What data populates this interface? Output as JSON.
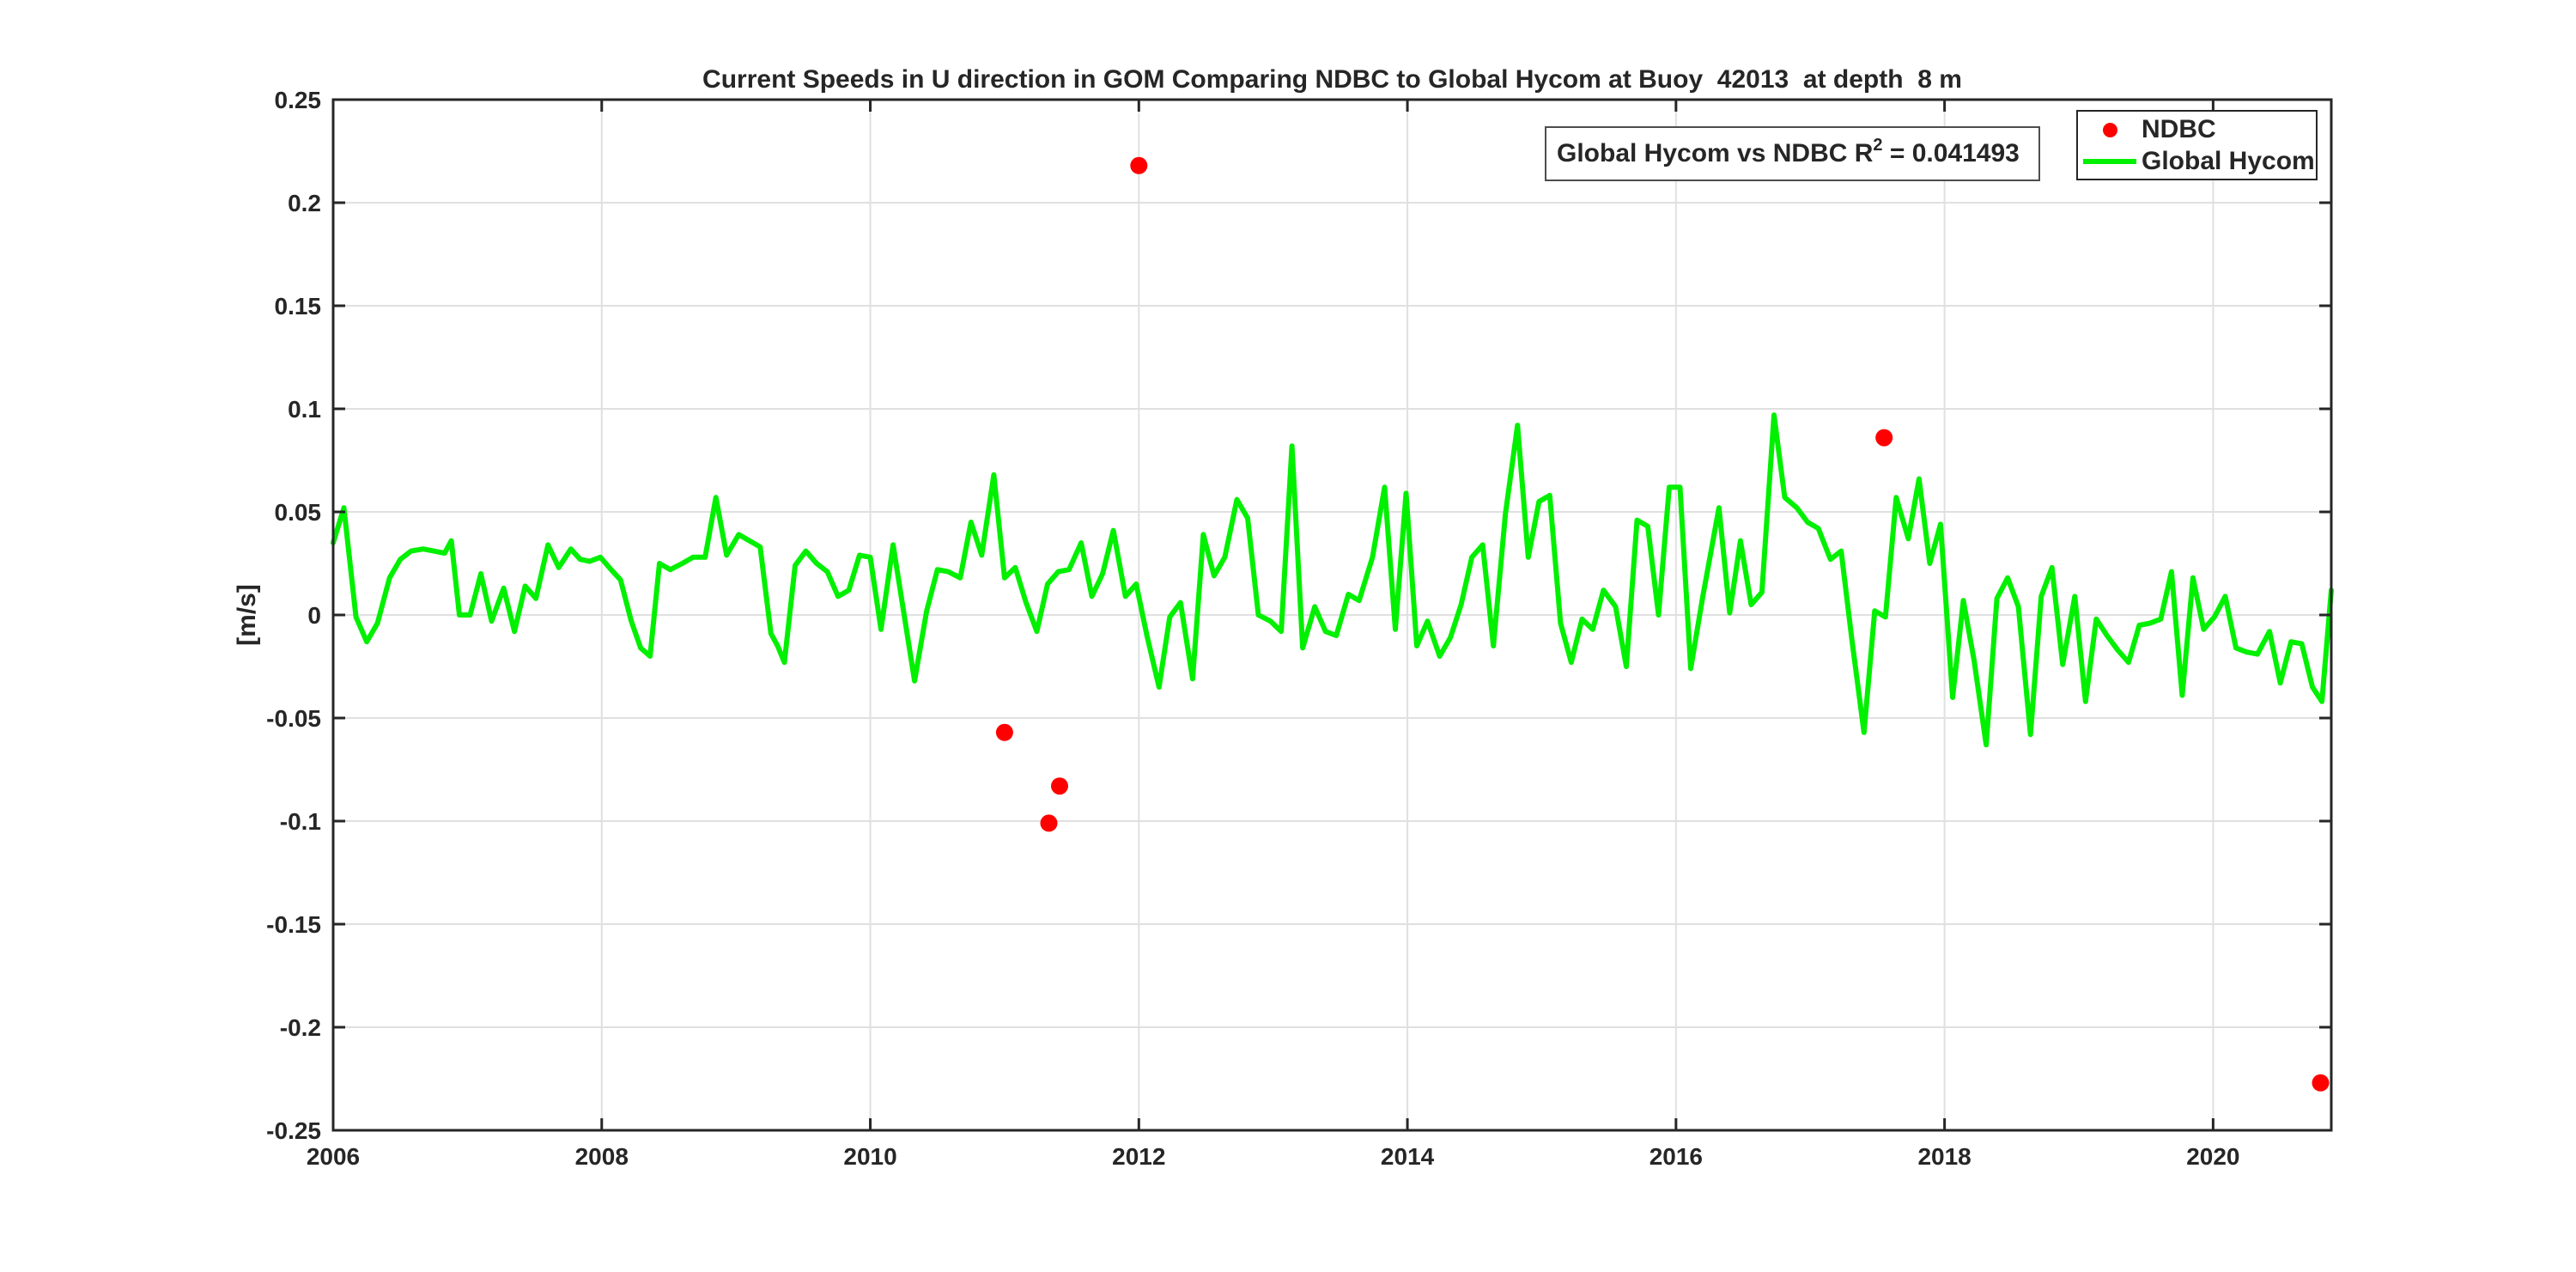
{
  "title": "Current Speeds in U direction in GOM Comparing NDBC to Global Hycom at Buoy  42013  at depth  8 m",
  "annotation": {
    "prefix": "Global Hycom vs NDBC R",
    "superscript": "2",
    "suffix": " = 0.041493"
  },
  "legend": {
    "items": [
      {
        "label": "NDBC",
        "marker": "red-dot"
      },
      {
        "label": "Global Hycom",
        "marker": "green-line"
      }
    ]
  },
  "colors": {
    "ndbc": "#ff0000",
    "hycom": "#00f000",
    "text": "#262626",
    "grid": "#e0e0e0",
    "axis": "#262626",
    "background": "#ffffff"
  },
  "chart_data": {
    "type": "line",
    "title": "Current Speeds in U direction in GOM Comparing NDBC to Global Hycom at Buoy  42013  at depth  8 m",
    "xlabel": "",
    "ylabel": "[m/s]",
    "xlim": [
      2006,
      2020.88
    ],
    "ylim": [
      -0.25,
      0.25
    ],
    "x_ticks": [
      2006,
      2008,
      2010,
      2012,
      2014,
      2016,
      2018,
      2020
    ],
    "x_tick_labels": [
      "2006",
      "2008",
      "2010",
      "2012",
      "2014",
      "2016",
      "2018",
      "2020"
    ],
    "y_ticks": [
      0.25,
      0.2,
      0.15,
      0.1,
      0.05,
      0,
      -0.05,
      -0.1,
      -0.15,
      -0.2,
      -0.25
    ],
    "y_tick_labels": [
      "0.25",
      "0.2",
      "0.15",
      "0.1",
      "0.05",
      "0",
      "-0.05",
      "-0.1",
      "-0.15",
      "-0.2",
      "-0.25"
    ],
    "grid": true,
    "legend_position": "top-right",
    "series": [
      {
        "name": "Global Hycom",
        "type": "line",
        "color": "#00f000",
        "points": [
          [
            2006.0,
            0.035
          ],
          [
            2006.08,
            0.052
          ],
          [
            2006.17,
            -0.001
          ],
          [
            2006.25,
            -0.013
          ],
          [
            2006.33,
            -0.004
          ],
          [
            2006.42,
            0.018
          ],
          [
            2006.5,
            0.027
          ],
          [
            2006.58,
            0.031
          ],
          [
            2006.67,
            0.032
          ],
          [
            2006.75,
            0.031
          ],
          [
            2006.83,
            0.03
          ],
          [
            2006.88,
            0.036
          ],
          [
            2006.94,
            0.0
          ],
          [
            2007.02,
            0.0
          ],
          [
            2007.1,
            0.02
          ],
          [
            2007.18,
            -0.003
          ],
          [
            2007.27,
            0.013
          ],
          [
            2007.35,
            -0.008
          ],
          [
            2007.43,
            0.014
          ],
          [
            2007.51,
            0.008
          ],
          [
            2007.6,
            0.034
          ],
          [
            2007.68,
            0.023
          ],
          [
            2007.77,
            0.032
          ],
          [
            2007.84,
            0.027
          ],
          [
            2007.91,
            0.026
          ],
          [
            2007.99,
            0.028
          ],
          [
            2008.07,
            0.022
          ],
          [
            2008.14,
            0.017
          ],
          [
            2008.22,
            -0.003
          ],
          [
            2008.29,
            -0.016
          ],
          [
            2008.36,
            -0.02
          ],
          [
            2008.43,
            0.025
          ],
          [
            2008.51,
            0.022
          ],
          [
            2008.6,
            0.025
          ],
          [
            2008.68,
            0.028
          ],
          [
            2008.77,
            0.028
          ],
          [
            2008.85,
            0.057
          ],
          [
            2008.93,
            0.029
          ],
          [
            2009.02,
            0.039
          ],
          [
            2009.1,
            0.036
          ],
          [
            2009.18,
            0.033
          ],
          [
            2009.26,
            -0.009
          ],
          [
            2009.31,
            -0.015
          ],
          [
            2009.36,
            -0.023
          ],
          [
            2009.44,
            0.024
          ],
          [
            2009.52,
            0.031
          ],
          [
            2009.6,
            0.025
          ],
          [
            2009.68,
            0.021
          ],
          [
            2009.76,
            0.009
          ],
          [
            2009.84,
            0.012
          ],
          [
            2009.92,
            0.029
          ],
          [
            2010.0,
            0.028
          ],
          [
            2010.08,
            -0.007
          ],
          [
            2010.17,
            0.034
          ],
          [
            2010.25,
            0.001
          ],
          [
            2010.33,
            -0.032
          ],
          [
            2010.42,
            0.002
          ],
          [
            2010.5,
            0.022
          ],
          [
            2010.58,
            0.021
          ],
          [
            2010.67,
            0.018
          ],
          [
            2010.75,
            0.045
          ],
          [
            2010.83,
            0.029
          ],
          [
            2010.92,
            0.068
          ],
          [
            2011.0,
            0.018
          ],
          [
            2011.08,
            0.023
          ],
          [
            2011.16,
            0.006
          ],
          [
            2011.24,
            -0.008
          ],
          [
            2011.32,
            0.015
          ],
          [
            2011.4,
            0.021
          ],
          [
            2011.48,
            0.022
          ],
          [
            2011.57,
            0.035
          ],
          [
            2011.65,
            0.009
          ],
          [
            2011.73,
            0.02
          ],
          [
            2011.81,
            0.041
          ],
          [
            2011.9,
            0.009
          ],
          [
            2011.98,
            0.015
          ],
          [
            2012.06,
            -0.01
          ],
          [
            2012.15,
            -0.035
          ],
          [
            2012.23,
            -0.001
          ],
          [
            2012.31,
            0.006
          ],
          [
            2012.4,
            -0.031
          ],
          [
            2012.48,
            0.039
          ],
          [
            2012.56,
            0.019
          ],
          [
            2012.64,
            0.028
          ],
          [
            2012.73,
            0.056
          ],
          [
            2012.81,
            0.047
          ],
          [
            2012.89,
            0.0
          ],
          [
            2012.98,
            -0.003
          ],
          [
            2013.06,
            -0.008
          ],
          [
            2013.14,
            0.082
          ],
          [
            2013.22,
            -0.016
          ],
          [
            2013.31,
            0.004
          ],
          [
            2013.39,
            -0.008
          ],
          [
            2013.47,
            -0.01
          ],
          [
            2013.56,
            0.01
          ],
          [
            2013.64,
            0.007
          ],
          [
            2013.74,
            0.028
          ],
          [
            2013.83,
            0.062
          ],
          [
            2013.91,
            -0.007
          ],
          [
            2013.99,
            0.059
          ],
          [
            2014.07,
            -0.015
          ],
          [
            2014.15,
            -0.003
          ],
          [
            2014.24,
            -0.02
          ],
          [
            2014.32,
            -0.011
          ],
          [
            2014.4,
            0.005
          ],
          [
            2014.48,
            0.028
          ],
          [
            2014.56,
            0.034
          ],
          [
            2014.64,
            -0.015
          ],
          [
            2014.73,
            0.049
          ],
          [
            2014.82,
            0.092
          ],
          [
            2014.9,
            0.028
          ],
          [
            2014.98,
            0.055
          ],
          [
            2015.06,
            0.058
          ],
          [
            2015.14,
            -0.004
          ],
          [
            2015.22,
            -0.023
          ],
          [
            2015.3,
            -0.002
          ],
          [
            2015.38,
            -0.007
          ],
          [
            2015.46,
            0.012
          ],
          [
            2015.55,
            0.004
          ],
          [
            2015.63,
            -0.025
          ],
          [
            2015.71,
            0.046
          ],
          [
            2015.79,
            0.043
          ],
          [
            2015.87,
            0.0
          ],
          [
            2015.95,
            0.062
          ],
          [
            2016.03,
            0.062
          ],
          [
            2016.11,
            -0.026
          ],
          [
            2016.2,
            0.009
          ],
          [
            2016.32,
            0.052
          ],
          [
            2016.4,
            0.001
          ],
          [
            2016.48,
            0.036
          ],
          [
            2016.56,
            0.005
          ],
          [
            2016.64,
            0.011
          ],
          [
            2016.73,
            0.097
          ],
          [
            2016.81,
            0.057
          ],
          [
            2016.9,
            0.052
          ],
          [
            2016.98,
            0.045
          ],
          [
            2017.06,
            0.042
          ],
          [
            2017.15,
            0.027
          ],
          [
            2017.23,
            0.031
          ],
          [
            2017.31,
            -0.012
          ],
          [
            2017.4,
            -0.057
          ],
          [
            2017.48,
            0.002
          ],
          [
            2017.56,
            -0.001
          ],
          [
            2017.64,
            0.057
          ],
          [
            2017.73,
            0.037
          ],
          [
            2017.81,
            0.066
          ],
          [
            2017.89,
            0.025
          ],
          [
            2017.97,
            0.044
          ],
          [
            2018.06,
            -0.04
          ],
          [
            2018.14,
            0.007
          ],
          [
            2018.22,
            -0.022
          ],
          [
            2018.31,
            -0.063
          ],
          [
            2018.39,
            0.008
          ],
          [
            2018.47,
            0.018
          ],
          [
            2018.55,
            0.004
          ],
          [
            2018.64,
            -0.058
          ],
          [
            2018.72,
            0.009
          ],
          [
            2018.8,
            0.023
          ],
          [
            2018.88,
            -0.024
          ],
          [
            2018.97,
            0.009
          ],
          [
            2019.05,
            -0.042
          ],
          [
            2019.13,
            -0.002
          ],
          [
            2019.21,
            -0.01
          ],
          [
            2019.29,
            -0.017
          ],
          [
            2019.37,
            -0.023
          ],
          [
            2019.45,
            -0.005
          ],
          [
            2019.53,
            -0.004
          ],
          [
            2019.61,
            -0.002
          ],
          [
            2019.69,
            0.021
          ],
          [
            2019.77,
            -0.039
          ],
          [
            2019.85,
            0.018
          ],
          [
            2019.93,
            -0.007
          ],
          [
            2020.01,
            -0.001
          ],
          [
            2020.09,
            0.009
          ],
          [
            2020.17,
            -0.016
          ],
          [
            2020.25,
            -0.018
          ],
          [
            2020.33,
            -0.019
          ],
          [
            2020.42,
            -0.008
          ],
          [
            2020.5,
            -0.033
          ],
          [
            2020.58,
            -0.013
          ],
          [
            2020.66,
            -0.014
          ],
          [
            2020.74,
            -0.035
          ],
          [
            2020.81,
            -0.042
          ],
          [
            2020.88,
            0.012
          ]
        ]
      },
      {
        "name": "NDBC",
        "type": "scatter",
        "color": "#ff0000",
        "points": [
          [
            2011.0,
            -0.057
          ],
          [
            2011.33,
            -0.101
          ],
          [
            2011.41,
            -0.083
          ],
          [
            2012.0,
            0.218
          ],
          [
            2017.55,
            0.086
          ],
          [
            2020.8,
            -0.227
          ]
        ]
      }
    ]
  }
}
